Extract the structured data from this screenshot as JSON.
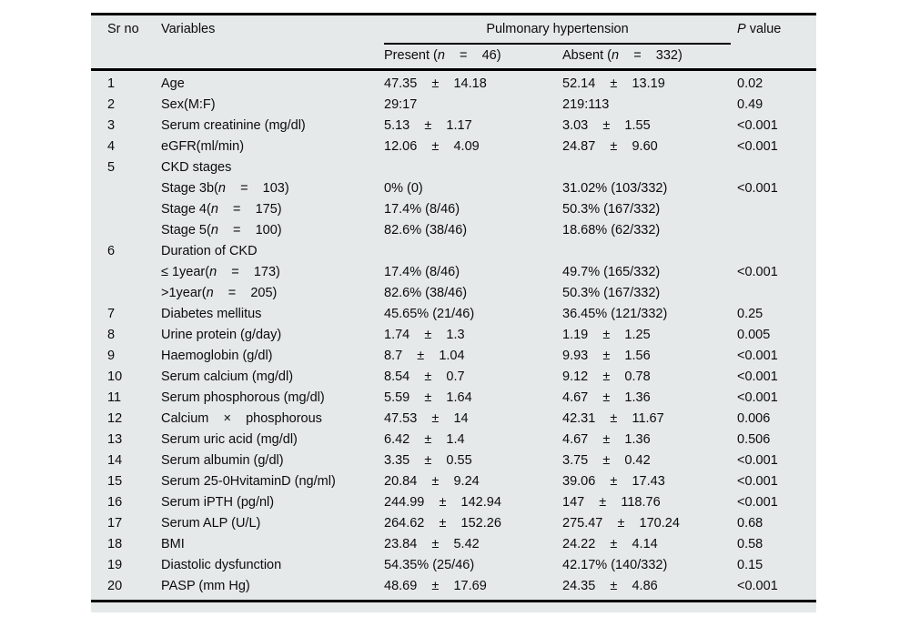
{
  "colors": {
    "panel_background": "#e5e9e9",
    "rule": "#000000",
    "text": "#0c0c0c"
  },
  "table": {
    "header": {
      "sr": "Sr no",
      "variables": "Variables",
      "group": "Pulmonary hypertension",
      "present": "Present (<i>n</i>    =    46)",
      "absent": "Absent (<i>n</i>    =    332)",
      "pvalue": "<i>P</i> value"
    },
    "rows": [
      {
        "sr": "1",
        "variable": "Age",
        "present": "47.35    ±    14.18",
        "absent": "52.14    ±    13.19",
        "p": "0.02"
      },
      {
        "sr": "2",
        "variable": "Sex(M:F)",
        "present": "29:17",
        "absent": "219:113",
        "p": "0.49"
      },
      {
        "sr": "3",
        "variable": "Serum creatinine (mg/dl)",
        "present": "5.13    ±    1.17",
        "absent": "3.03    ±    1.55",
        "p": "<0.001"
      },
      {
        "sr": "4",
        "variable": "eGFR(ml/min)",
        "present": "12.06    ±    4.09",
        "absent": "24.87    ±    9.60",
        "p": "<0.001"
      },
      {
        "sr": "5",
        "variable": "CKD stages",
        "present": "",
        "absent": "",
        "p": ""
      },
      {
        "sr": "",
        "variable": "Stage 3b(<i>n</i>    =    103)",
        "present": "0% (0)",
        "absent": "31.02% (103/332)",
        "p": "<0.001"
      },
      {
        "sr": "",
        "variable": "Stage 4(<i>n</i>    =    175)",
        "present": "17.4% (8/46)",
        "absent": "50.3% (167/332)",
        "p": ""
      },
      {
        "sr": "",
        "variable": "Stage 5(<i>n</i>    =    100)",
        "present": "82.6% (38/46)",
        "absent": "18.68% (62/332)",
        "p": ""
      },
      {
        "sr": "6",
        "variable": "Duration of CKD",
        "present": "",
        "absent": "",
        "p": ""
      },
      {
        "sr": "",
        "variable": "≤ 1year(<i>n</i>    =    173)",
        "present": "17.4% (8/46)",
        "absent": "49.7% (165/332)",
        "p": "<0.001"
      },
      {
        "sr": "",
        "variable": ">1year(<i>n</i>    =    205)",
        "present": "82.6% (38/46)",
        "absent": "50.3% (167/332)",
        "p": ""
      },
      {
        "sr": "7",
        "variable": "Diabetes mellitus",
        "present": "45.65% (21/46)",
        "absent": "36.45% (121/332)",
        "p": "0.25"
      },
      {
        "sr": "8",
        "variable": "Urine protein (g/day)",
        "present": "1.74    ±    1.3",
        "absent": "1.19    ±    1.25",
        "p": "0.005"
      },
      {
        "sr": "9",
        "variable": "Haemoglobin (g/dl)",
        "present": "8.7    ±    1.04",
        "absent": "9.93    ±    1.56",
        "p": "<0.001"
      },
      {
        "sr": "10",
        "variable": "Serum calcium (mg/dl)",
        "present": "8.54    ±    0.7",
        "absent": "9.12    ±    0.78",
        "p": "<0.001"
      },
      {
        "sr": "11",
        "variable": "Serum phosphorous (mg/dl)",
        "present": "5.59    ±    1.64",
        "absent": "4.67    ±    1.36",
        "p": "<0.001"
      },
      {
        "sr": "12",
        "variable": "Calcium    ×    phosphorous",
        "present": "47.53    ±    14",
        "absent": "42.31    ±    11.67",
        "p": "0.006"
      },
      {
        "sr": "13",
        "variable": "Serum uric acid (mg/dl)",
        "present": "6.42    ±    1.4",
        "absent": "4.67    ±    1.36",
        "p": "0.506"
      },
      {
        "sr": "14",
        "variable": "Serum albumin (g/dl)",
        "present": "3.35    ±    0.55",
        "absent": "3.75    ±    0.42",
        "p": "<0.001"
      },
      {
        "sr": "15",
        "variable": "Serum 25-0HvitaminD (ng/ml)",
        "present": "20.84    ±    9.24",
        "absent": "39.06    ±    17.43",
        "p": "<0.001"
      },
      {
        "sr": "16",
        "variable": "Serum iPTH (pg/nl)",
        "present": "244.99    ±    142.94",
        "absent": "147    ±    118.76",
        "p": "<0.001"
      },
      {
        "sr": "17",
        "variable": "Serum ALP (U/L)",
        "present": "264.62    ±    152.26",
        "absent": "275.47    ±    170.24",
        "p": "0.68"
      },
      {
        "sr": "18",
        "variable": "BMI",
        "present": "23.84    ±    5.42",
        "absent": "24.22    ±    4.14",
        "p": "0.58"
      },
      {
        "sr": "19",
        "variable": "Diastolic dysfunction",
        "present": "54.35% (25/46)",
        "absent": "42.17% (140/332)",
        "p": "0.15"
      },
      {
        "sr": "20",
        "variable": "PASP (mm Hg)",
        "present": "48.69    ±    17.69",
        "absent": "24.35    ±    4.86",
        "p": "<0.001"
      }
    ]
  }
}
